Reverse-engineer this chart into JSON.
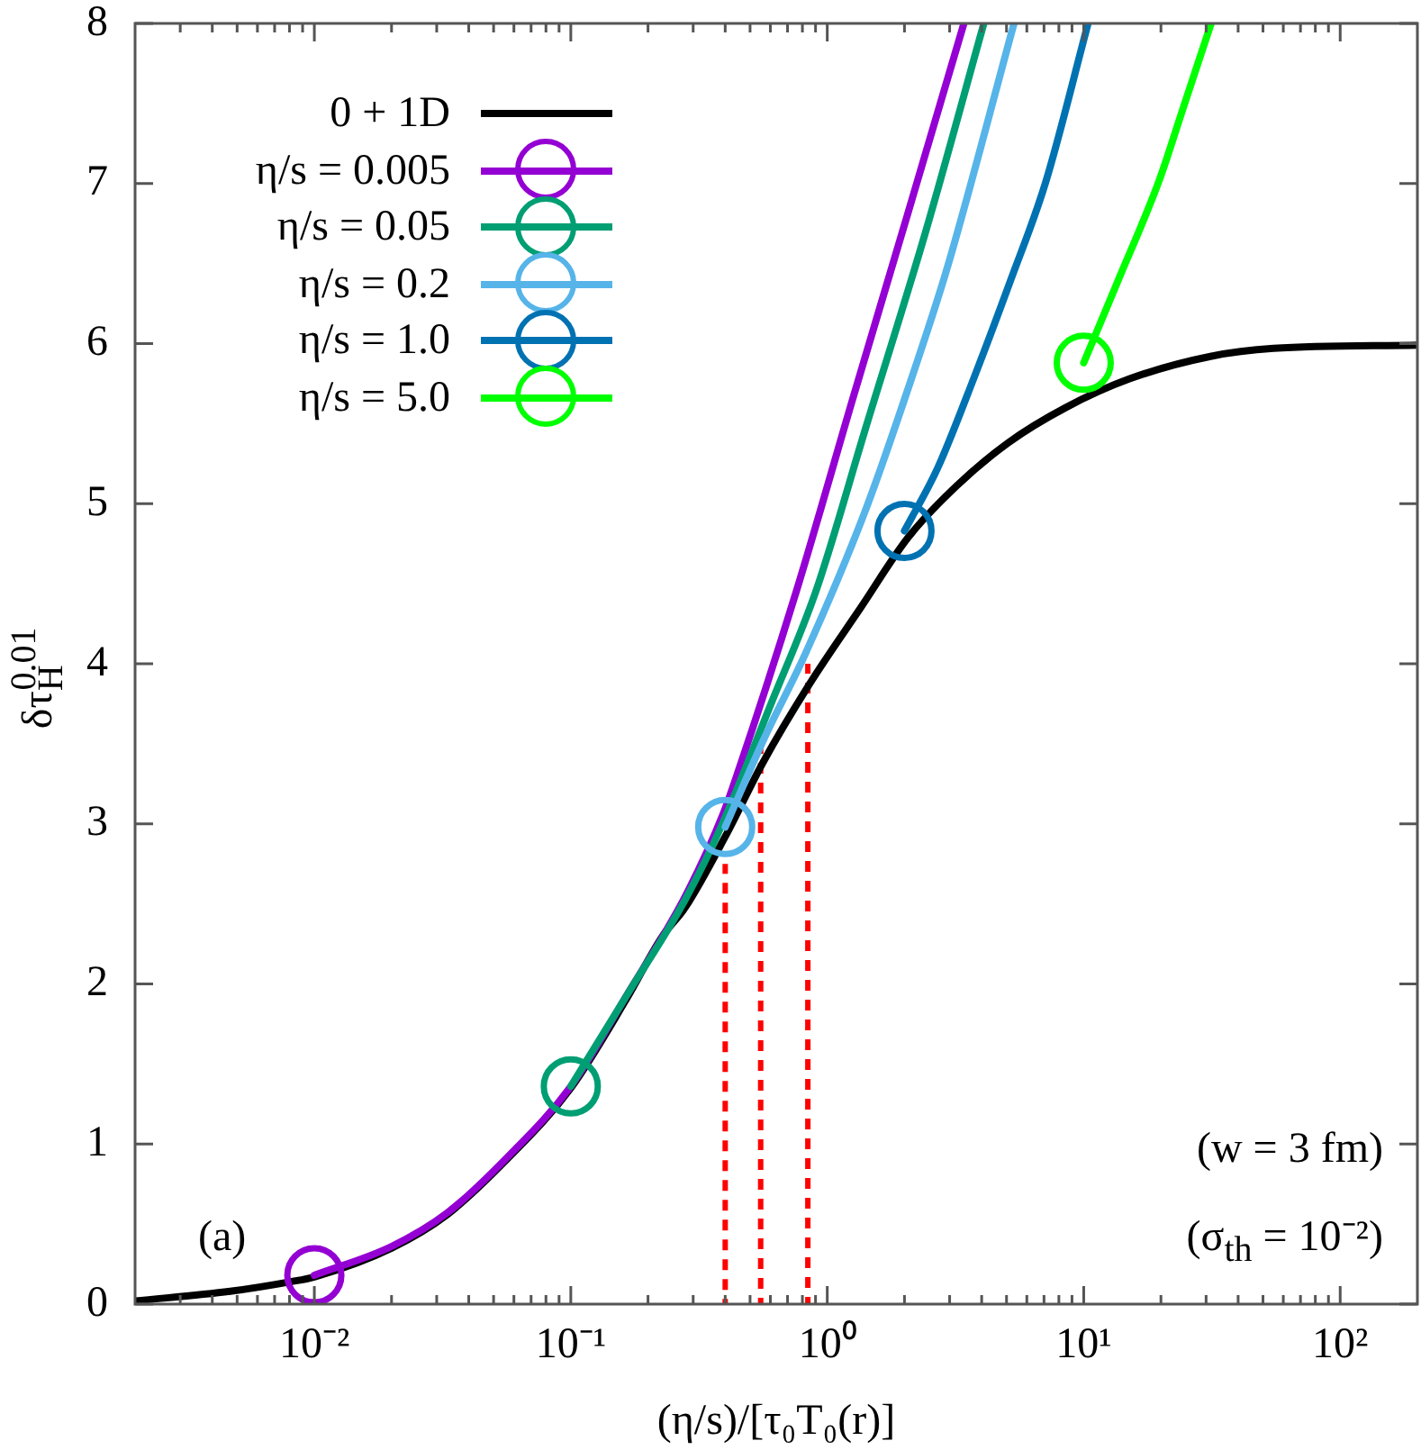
{
  "chart_data": {
    "type": "line",
    "xlabel": "(η/s)/[τ₀T₀(r)]",
    "ylabel": "δτ$_{H}$$^{0.01}$",
    "annotations": [
      "(a)",
      "(w = 3 fm)",
      "(σ$_{th}$ = 10⁻²)"
    ],
    "log": "x",
    "xlim": [
      0.002,
      200
    ],
    "xticks": [
      {
        "value": 0.003,
        "label": null
      },
      {
        "value": 0.004,
        "label": null
      },
      {
        "value": 0.005,
        "label": null
      },
      {
        "value": 0.006,
        "label": null
      },
      {
        "value": 0.007,
        "label": null
      },
      {
        "value": 0.008,
        "label": null
      },
      {
        "value": 0.009,
        "label": null
      },
      {
        "value": 0.01,
        "label": "10⁻²"
      },
      {
        "value": 0.02,
        "label": null
      },
      {
        "value": 0.03,
        "label": null
      },
      {
        "value": 0.04,
        "label": null
      },
      {
        "value": 0.05,
        "label": null
      },
      {
        "value": 0.06,
        "label": null
      },
      {
        "value": 0.07,
        "label": null
      },
      {
        "value": 0.08,
        "label": null
      },
      {
        "value": 0.09,
        "label": null
      },
      {
        "value": 0.1,
        "label": "10⁻¹"
      },
      {
        "value": 0.2,
        "label": null
      },
      {
        "value": 0.3,
        "label": null
      },
      {
        "value": 0.4,
        "label": null
      },
      {
        "value": 0.5,
        "label": null
      },
      {
        "value": 0.6,
        "label": null
      },
      {
        "value": 0.7,
        "label": null
      },
      {
        "value": 0.8,
        "label": null
      },
      {
        "value": 0.9,
        "label": null
      },
      {
        "value": 1,
        "label": "10⁰"
      },
      {
        "value": 2,
        "label": null
      },
      {
        "value": 3,
        "label": null
      },
      {
        "value": 4,
        "label": null
      },
      {
        "value": 5,
        "label": null
      },
      {
        "value": 6,
        "label": null
      },
      {
        "value": 7,
        "label": null
      },
      {
        "value": 8,
        "label": null
      },
      {
        "value": 9,
        "label": null
      },
      {
        "value": 10,
        "label": "10¹"
      },
      {
        "value": 20,
        "label": null
      },
      {
        "value": 30,
        "label": null
      },
      {
        "value": 40,
        "label": null
      },
      {
        "value": 50,
        "label": null
      },
      {
        "value": 60,
        "label": null
      },
      {
        "value": 70,
        "label": null
      },
      {
        "value": 80,
        "label": null
      },
      {
        "value": 90,
        "label": null
      },
      {
        "value": 100,
        "label": "10²"
      }
    ],
    "ylim": [
      0,
      8
    ],
    "yticks": [
      0,
      1,
      2,
      3,
      4,
      5,
      6,
      7,
      8
    ],
    "grid": false,
    "legend": "top left",
    "marker": "none",
    "line_style": "solid",
    "series": [
      {
        "type": "line",
        "color": "#ff0000",
        "line_style": "dotted",
        "x": [
          0.4,
          0.4
        ],
        "values": [
          0,
          2.75
        ]
      },
      {
        "type": "line",
        "color": "#ff0000",
        "line_style": "dotted",
        "x": [
          0.55,
          0.55
        ],
        "values": [
          0,
          3.5
        ]
      },
      {
        "type": "line",
        "color": "#ff0000",
        "line_style": "dotted",
        "x": [
          0.84,
          0.84
        ],
        "values": [
          0,
          4.0
        ]
      },
      {
        "name": "0 + 1D",
        "color": "#000000",
        "x": [
          0.002,
          0.0047,
          0.0081,
          0.01,
          0.02,
          0.033,
          0.056,
          0.1,
          0.164,
          0.226,
          0.28,
          0.4,
          0.56,
          0.85,
          1.35,
          2.07,
          3.19,
          5.07,
          8.5,
          15.1,
          31.2,
          55,
          200
        ],
        "values": [
          0.02,
          0.08,
          0.14,
          0.17,
          0.35,
          0.56,
          0.9,
          1.35,
          1.9,
          2.29,
          2.48,
          2.92,
          3.38,
          3.87,
          4.35,
          4.79,
          5.11,
          5.38,
          5.6,
          5.78,
          5.92,
          5.97,
          5.99
        ]
      },
      {
        "name": "η/s = 0.005",
        "color": "#9400d3",
        "x": [
          0.01,
          0.02,
          0.033,
          0.056,
          0.1,
          0.164,
          0.28,
          0.39,
          0.45,
          0.76,
          1.26,
          2.05,
          3.41
        ],
        "values": [
          0.18,
          0.36,
          0.57,
          0.91,
          1.36,
          1.92,
          2.55,
          3.05,
          3.33,
          4.46,
          5.66,
          6.8,
          8.0
        ]
      },
      {
        "name": "η/s = 0.05",
        "color": "#009e73",
        "x": [
          0.1,
          0.164,
          0.28,
          0.39,
          0.6,
          0.906,
          1.41,
          2.42,
          4.08
        ],
        "values": [
          1.36,
          1.92,
          2.53,
          3.0,
          3.74,
          4.46,
          5.47,
          6.7,
          8.0
        ]
      },
      {
        "name": "η/s = 0.2",
        "color": "#56b4e9",
        "x": [
          0.4,
          0.57,
          0.82,
          1.41,
          2.17,
          2.92,
          5.35
        ],
        "values": [
          2.98,
          3.54,
          4.06,
          4.96,
          5.82,
          6.46,
          8.0
        ]
      },
      {
        "name": "η/s = 1.0",
        "color": "#0072b2",
        "x": [
          2,
          2.69,
          3.72,
          5.2,
          7.08,
          10.4
        ],
        "values": [
          4.83,
          5.22,
          5.78,
          6.4,
          7.0,
          8.0
        ]
      },
      {
        "name": "η/s = 5.0",
        "color": "#00ff00",
        "x": [
          10,
          13.5,
          19.7,
          24.4,
          31.4
        ],
        "values": [
          5.88,
          6.38,
          7.02,
          7.47,
          8.0
        ]
      },
      {
        "type": "scatter",
        "color": "#9400d3",
        "marker": "circle",
        "x": [
          0.01
        ],
        "values": [
          0.18
        ]
      },
      {
        "type": "scatter",
        "color": "#009e73",
        "marker": "circle",
        "x": [
          0.1
        ],
        "values": [
          1.36
        ]
      },
      {
        "type": "scatter",
        "color": "#56b4e9",
        "marker": "circle",
        "x": [
          0.4
        ],
        "values": [
          2.98
        ]
      },
      {
        "type": "scatter",
        "color": "#0072b2",
        "marker": "circle",
        "x": [
          2
        ],
        "values": [
          4.83
        ]
      },
      {
        "type": "scatter",
        "color": "#00ff00",
        "marker": "circle",
        "x": [
          10
        ],
        "values": [
          5.88
        ]
      }
    ]
  }
}
